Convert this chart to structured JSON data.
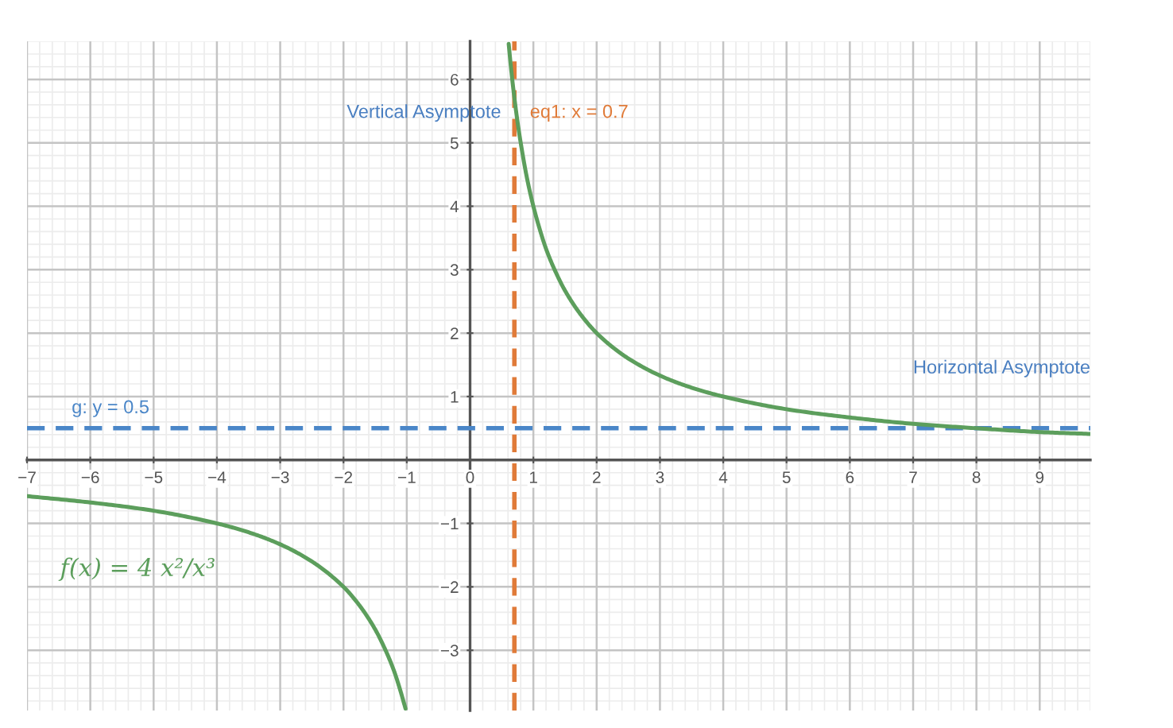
{
  "chart_data": {
    "type": "line",
    "x": [
      -7,
      -6,
      -5,
      -4,
      -3.5,
      -3,
      -2.5,
      -2,
      -1.75,
      -1.5,
      -1.3,
      -1.2,
      -1.1,
      -1.02,
      0,
      0.61,
      0.65,
      0.7,
      0.75,
      0.8,
      0.9,
      1,
      1.1,
      1.2,
      1.3,
      1.5,
      1.75,
      2,
      2.25,
      2.5,
      3,
      3.5,
      4,
      5,
      6,
      7,
      8,
      9,
      9.8
    ],
    "series": [
      {
        "name": "f(x) = 4 x²/x³",
        "color": "#5c9e5c",
        "line_style": "solid",
        "values": [
          -0.57,
          -0.67,
          -0.8,
          -1,
          -1.14,
          -1.33,
          -1.6,
          -2,
          -2.29,
          -2.67,
          -3.08,
          -3.33,
          -3.64,
          -3.92,
          null,
          6.56,
          6.15,
          5.71,
          5.33,
          5,
          4.44,
          4,
          3.64,
          3.33,
          3.08,
          2.67,
          2.29,
          2,
          1.78,
          1.6,
          1.33,
          1.14,
          1,
          0.8,
          0.67,
          0.57,
          0.5,
          0.44,
          0.41
        ]
      }
    ],
    "xlim": [
      -7,
      9.8
    ],
    "ylim": [
      -3.95,
      6.6
    ],
    "xticks": [
      {
        "value": -7,
        "label": "−7"
      },
      {
        "value": -6,
        "label": "−6"
      },
      {
        "value": -5,
        "label": "−5"
      },
      {
        "value": -4,
        "label": "−4"
      },
      {
        "value": -3,
        "label": "−3"
      },
      {
        "value": -2,
        "label": "−2"
      },
      {
        "value": -1,
        "label": "−1"
      },
      0,
      1,
      2,
      3,
      4,
      5,
      6,
      7,
      8,
      9
    ],
    "yticks": [
      {
        "value": -3,
        "label": "−3"
      },
      {
        "value": -2,
        "label": "−2"
      },
      {
        "value": -1,
        "label": "−1"
      },
      1,
      2,
      3,
      4,
      5,
      6
    ],
    "grid": true,
    "ref_lines": [
      {
        "axis": "x",
        "value": 0.7,
        "label": "eq1: x = 0.7",
        "color": "#e07b39",
        "line_style": "dashed"
      },
      {
        "axis": "y",
        "value": 0.5,
        "label": "g: y = 0.5",
        "color": "#4a86c8",
        "line_style": "dashed"
      }
    ],
    "annotations": [
      {
        "text": "Vertical Asymptote",
        "x": 0.7,
        "y": 5.47
      },
      "Horizontal Asymptote"
    ]
  }
}
